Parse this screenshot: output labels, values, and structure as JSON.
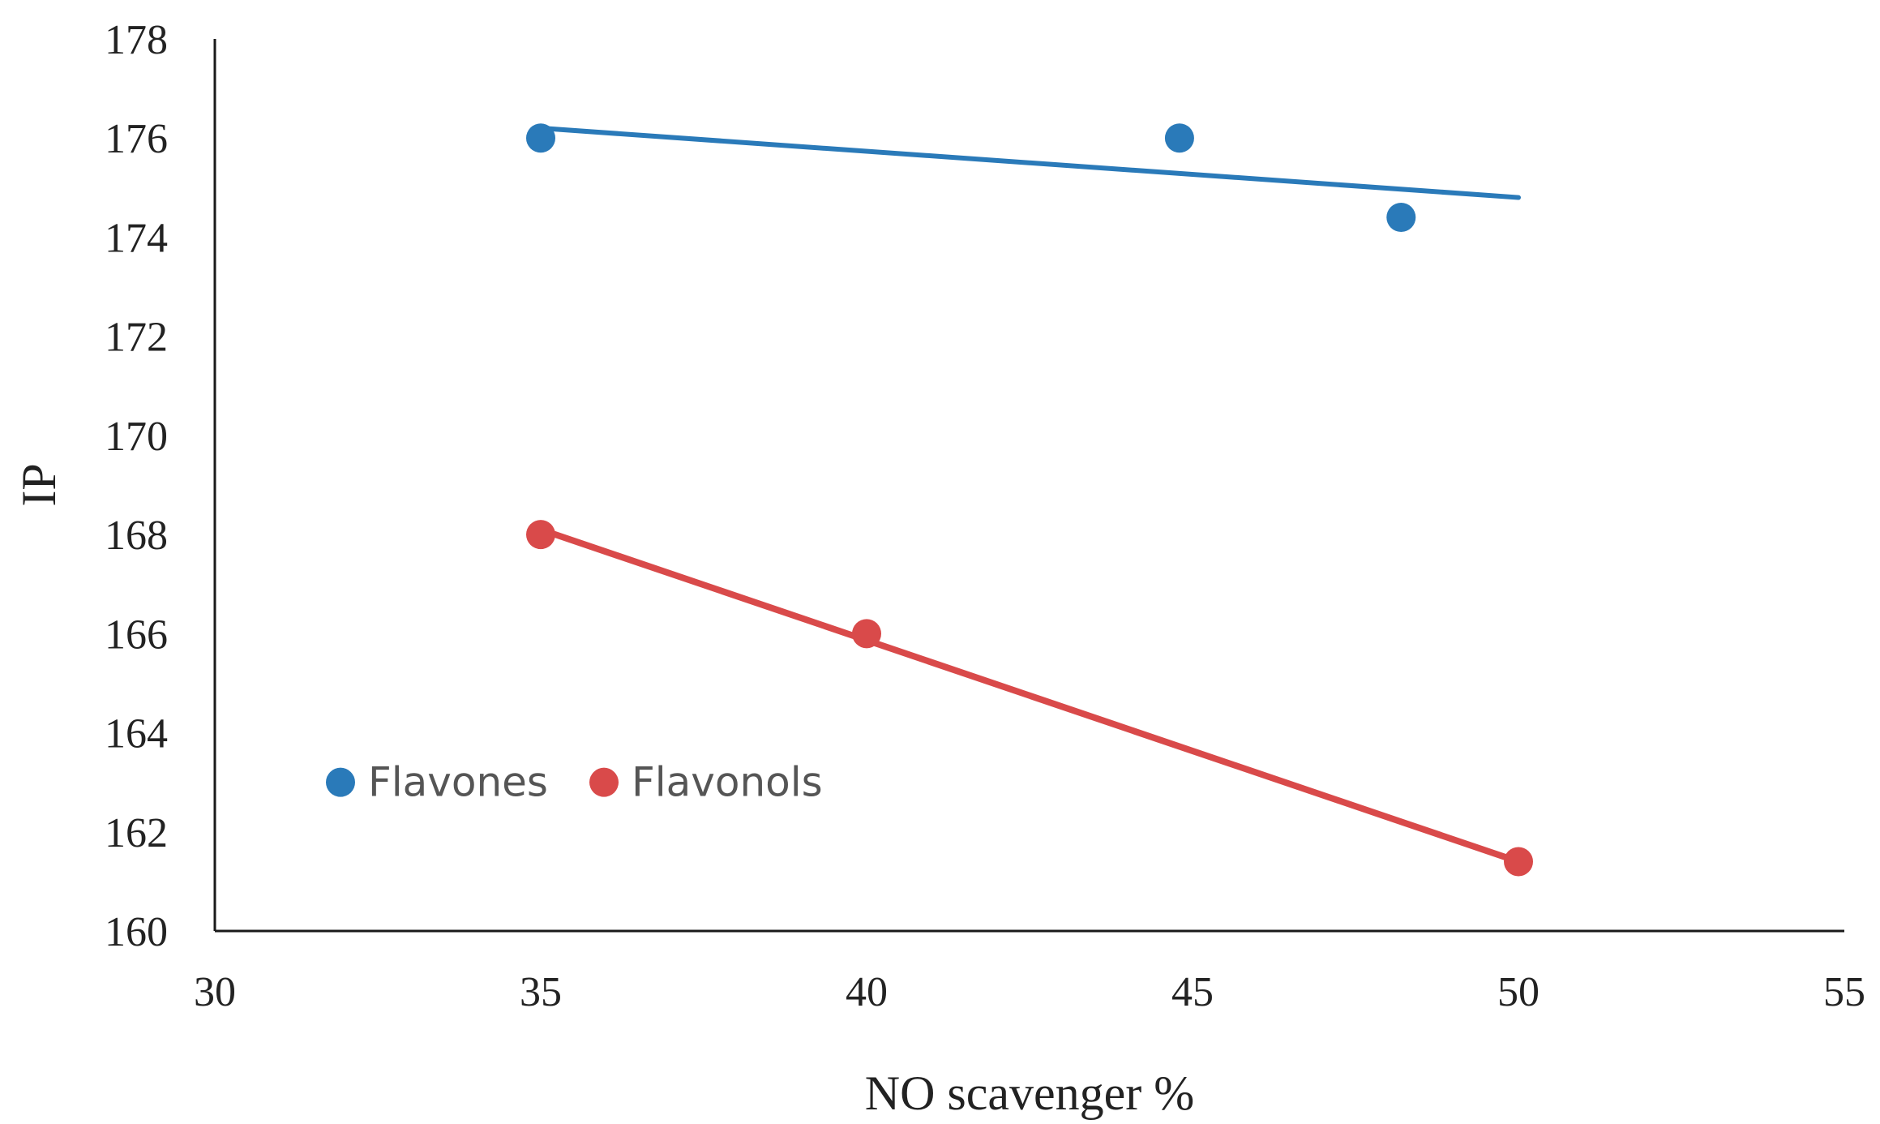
{
  "chart_data": {
    "type": "scatter",
    "title": "",
    "xlabel": "NO scavenger %",
    "ylabel": "IP",
    "xlim": [
      30,
      55
    ],
    "ylim": [
      160,
      178
    ],
    "xticks": [
      30,
      35,
      40,
      45,
      50,
      55
    ],
    "yticks": [
      160,
      162,
      164,
      166,
      168,
      170,
      172,
      174,
      176,
      178
    ],
    "grid": false,
    "legend_position": "lower-left",
    "series": [
      {
        "name": "Flavones",
        "color": "#2a7ab9",
        "points": [
          {
            "x": 35.0,
            "y": 176.0
          },
          {
            "x": 44.8,
            "y": 176.0
          },
          {
            "x": 48.2,
            "y": 174.4
          }
        ],
        "trendline": {
          "x": [
            35.0,
            50.0
          ],
          "y": [
            176.2,
            174.8
          ]
        }
      },
      {
        "name": "Flavonols",
        "color": "#d94a4a",
        "points": [
          {
            "x": 35.0,
            "y": 168.0
          },
          {
            "x": 40.0,
            "y": 166.0
          },
          {
            "x": 50.0,
            "y": 161.4
          }
        ],
        "trendline": {
          "x": [
            35.0,
            50.0
          ],
          "y": [
            168.1,
            161.4
          ]
        }
      }
    ]
  }
}
